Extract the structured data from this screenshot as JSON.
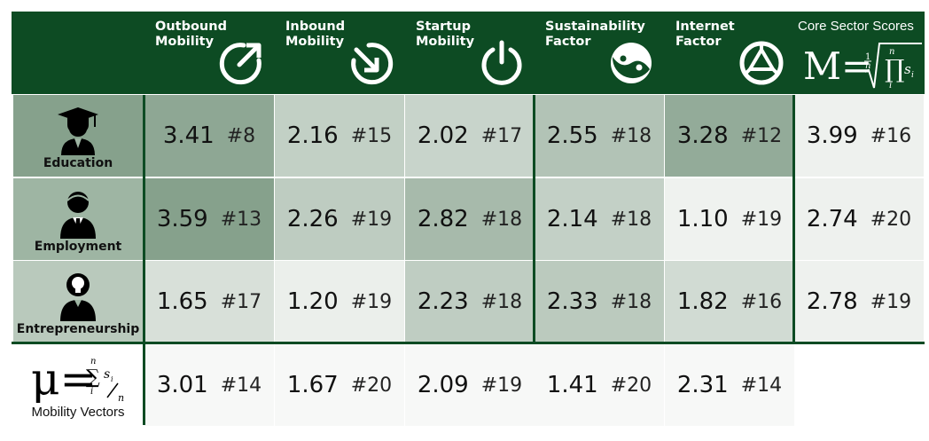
{
  "chart_data": {
    "type": "table",
    "columns": [
      {
        "label": "Outbound\nMobility",
        "icon": "outbound-arrow-icon"
      },
      {
        "label": "Inbound\nMobility",
        "icon": "inbound-arrow-icon"
      },
      {
        "label": "Startup\nMobility",
        "icon": "power-icon"
      },
      {
        "label": "Sustainability\nFactor",
        "icon": "yin-yang-icon"
      },
      {
        "label": "Internet\nFactor",
        "icon": "network-globe-icon"
      }
    ],
    "core_column": {
      "label": "Core Sector Scores",
      "formula": "M="
    },
    "rows": [
      {
        "name": "Education",
        "icon": "graduate-icon",
        "values": [
          3.41,
          2.16,
          2.02,
          2.55,
          3.28
        ],
        "ranks": [
          "#8",
          "#15",
          "#17",
          "#18",
          "#12"
        ],
        "core_value": 3.99,
        "core_rank": "#16"
      },
      {
        "name": "Employment",
        "icon": "employee-icon",
        "values": [
          3.59,
          2.26,
          2.82,
          2.14,
          1.1
        ],
        "ranks": [
          "#13",
          "#19",
          "#18",
          "#18",
          "#19"
        ],
        "core_value": 2.74,
        "core_rank": "#20"
      },
      {
        "name": "Entrepreneurship",
        "icon": "entrepreneur-icon",
        "values": [
          1.65,
          1.2,
          2.23,
          2.33,
          1.82
        ],
        "ranks": [
          "#17",
          "#19",
          "#18",
          "#18",
          "#16"
        ],
        "core_value": 2.78,
        "core_rank": "#19"
      }
    ],
    "mobility_vectors": {
      "name": "Mobility Vectors",
      "formula": "μ=",
      "values": [
        3.01,
        1.67,
        2.09,
        1.41,
        2.31
      ],
      "ranks": [
        "#14",
        "#20",
        "#19",
        "#20",
        "#14"
      ]
    },
    "colors": {
      "header": "#0d4b23",
      "cell_min": "#f3f5f3",
      "cell_max": "#86a18c"
    }
  }
}
